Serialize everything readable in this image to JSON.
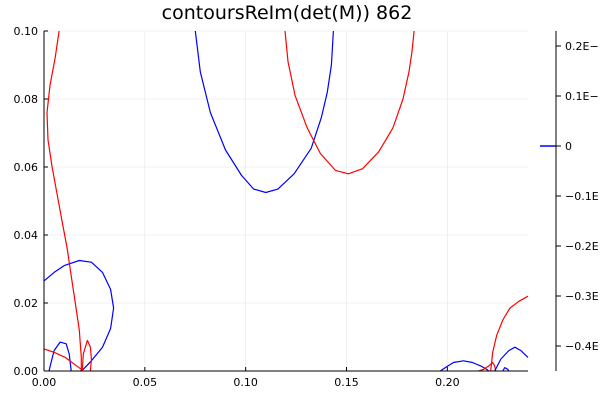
{
  "chart_data": {
    "type": "line",
    "title": "contoursReIm(det(M)) 862",
    "xlabel": "",
    "ylabel": "",
    "xlim": [
      0,
      0.24
    ],
    "ylim": [
      0,
      0.1
    ],
    "x_ticks": [
      {
        "value": 0.0,
        "label": "0.00"
      },
      {
        "value": 0.05,
        "label": "0.05"
      },
      {
        "value": 0.1,
        "label": "0.10"
      },
      {
        "value": 0.15,
        "label": "0.15"
      },
      {
        "value": 0.2,
        "label": "0.20"
      }
    ],
    "y_ticks": [
      {
        "value": 0.0,
        "label": "0.00"
      },
      {
        "value": 0.02,
        "label": "0.02"
      },
      {
        "value": 0.04,
        "label": "0.04"
      },
      {
        "value": 0.06,
        "label": "0.06"
      },
      {
        "value": 0.08,
        "label": "0.08"
      },
      {
        "value": 0.1,
        "label": "0.10"
      }
    ],
    "grid": true,
    "colorbar": {
      "range": [
        -0.45,
        0.23
      ],
      "ticks": [
        {
          "value": 0.2,
          "label": "0.2E−"
        },
        {
          "value": 0.1,
          "label": "0.1E−"
        },
        {
          "value": 0.0,
          "label": "0"
        },
        {
          "value": -0.1,
          "label": "−0.1E"
        },
        {
          "value": -0.2,
          "label": "−0.2E"
        },
        {
          "value": -0.3,
          "label": "−0.3E"
        },
        {
          "value": -0.4,
          "label": "−0.4E"
        }
      ],
      "marker_value": 0.0,
      "marker_color": "#0000ff"
    },
    "series": [
      {
        "color": "#0000ff",
        "points": [
          [
            0.075,
            0.1
          ],
          [
            0.0775,
            0.088
          ],
          [
            0.0825,
            0.076
          ],
          [
            0.09,
            0.065
          ],
          [
            0.098,
            0.0575
          ],
          [
            0.104,
            0.0535
          ],
          [
            0.11,
            0.0525
          ],
          [
            0.116,
            0.0535
          ],
          [
            0.124,
            0.058
          ],
          [
            0.1325,
            0.0655
          ],
          [
            0.1375,
            0.0745
          ],
          [
            0.1405,
            0.082
          ],
          [
            0.1425,
            0.09
          ],
          [
            0.1435,
            0.1
          ]
        ]
      },
      {
        "color": "#ff0000",
        "points": [
          [
            0.1195,
            0.1
          ],
          [
            0.121,
            0.091
          ],
          [
            0.1245,
            0.081
          ],
          [
            0.1305,
            0.0715
          ],
          [
            0.137,
            0.064
          ],
          [
            0.1445,
            0.059
          ],
          [
            0.151,
            0.058
          ],
          [
            0.158,
            0.0595
          ],
          [
            0.166,
            0.0645
          ],
          [
            0.173,
            0.0715
          ],
          [
            0.178,
            0.08
          ],
          [
            0.181,
            0.088
          ],
          [
            0.1825,
            0.094
          ],
          [
            0.1835,
            0.1
          ]
        ]
      },
      {
        "color": "#0000ff",
        "points": [
          [
            0.0,
            0.0265
          ],
          [
            0.005,
            0.029
          ],
          [
            0.01,
            0.031
          ],
          [
            0.0175,
            0.0325
          ],
          [
            0.0235,
            0.032
          ],
          [
            0.029,
            0.029
          ],
          [
            0.033,
            0.024
          ],
          [
            0.0345,
            0.0185
          ],
          [
            0.033,
            0.0125
          ],
          [
            0.029,
            0.007
          ],
          [
            0.0235,
            0.003
          ],
          [
            0.0195,
            0.0005
          ],
          [
            0.018,
            0.0
          ]
        ]
      },
      {
        "color": "#0000ff",
        "points": [
          [
            0.0025,
            0.0
          ],
          [
            0.0035,
            0.0025
          ],
          [
            0.005,
            0.006
          ],
          [
            0.008,
            0.0085
          ],
          [
            0.011,
            0.008
          ],
          [
            0.0125,
            0.005
          ],
          [
            0.013,
            0.0025
          ],
          [
            0.0135,
            0.0
          ]
        ]
      },
      {
        "color": "#ff0000",
        "points": [
          [
            0.0,
            0.0065
          ],
          [
            0.005,
            0.0055
          ],
          [
            0.0105,
            0.004
          ],
          [
            0.015,
            0.002
          ],
          [
            0.0185,
            0.0005
          ],
          [
            0.019,
            0.0
          ]
        ]
      },
      {
        "color": "#ff0000",
        "points": [
          [
            0.0075,
            0.1
          ],
          [
            0.0055,
            0.092
          ],
          [
            0.003,
            0.084
          ],
          [
            0.0015,
            0.076
          ],
          [
            0.002,
            0.068
          ],
          [
            0.004,
            0.06
          ],
          [
            0.0065,
            0.052
          ],
          [
            0.009,
            0.044
          ],
          [
            0.0115,
            0.036
          ],
          [
            0.0135,
            0.028
          ],
          [
            0.0155,
            0.02
          ],
          [
            0.0175,
            0.012
          ],
          [
            0.0185,
            0.004
          ],
          [
            0.0185,
            0.0
          ]
        ]
      },
      {
        "color": "#ff0000",
        "points": [
          [
            0.019,
            0.0
          ],
          [
            0.0195,
            0.005
          ],
          [
            0.0215,
            0.009
          ],
          [
            0.023,
            0.007
          ],
          [
            0.0235,
            0.0035
          ],
          [
            0.023,
            0.0
          ]
        ]
      },
      {
        "color": "#0000ff",
        "points": [
          [
            0.1965,
            0.0
          ],
          [
            0.199,
            0.001
          ],
          [
            0.203,
            0.0025
          ],
          [
            0.208,
            0.003
          ],
          [
            0.2125,
            0.0025
          ],
          [
            0.2165,
            0.0015
          ],
          [
            0.2195,
            0.0005
          ],
          [
            0.2205,
            0.0
          ]
        ]
      },
      {
        "color": "#ff0000",
        "points": [
          [
            0.2155,
            0.0
          ],
          [
            0.218,
            0.0005
          ],
          [
            0.2205,
            0.0015
          ],
          [
            0.2225,
            0.0025
          ],
          [
            0.2235,
            0.0015
          ],
          [
            0.224,
            0.0
          ]
        ]
      },
      {
        "color": "#ff0000",
        "points": [
          [
            0.2215,
            0.0
          ],
          [
            0.2225,
            0.0055
          ],
          [
            0.2245,
            0.0105
          ],
          [
            0.2275,
            0.015
          ],
          [
            0.231,
            0.0185
          ],
          [
            0.2355,
            0.0205
          ],
          [
            0.24,
            0.022
          ]
        ]
      },
      {
        "color": "#0000ff",
        "points": [
          [
            0.2235,
            0.0
          ],
          [
            0.2265,
            0.0035
          ],
          [
            0.2305,
            0.006
          ],
          [
            0.2335,
            0.007
          ],
          [
            0.2365,
            0.006
          ],
          [
            0.24,
            0.004
          ]
        ]
      },
      {
        "color": "#0000ff",
        "points": [
          [
            0.2275,
            0.0
          ],
          [
            0.2285,
            0.001
          ],
          [
            0.23,
            0.0005
          ],
          [
            0.2305,
            0.0
          ]
        ]
      }
    ]
  }
}
